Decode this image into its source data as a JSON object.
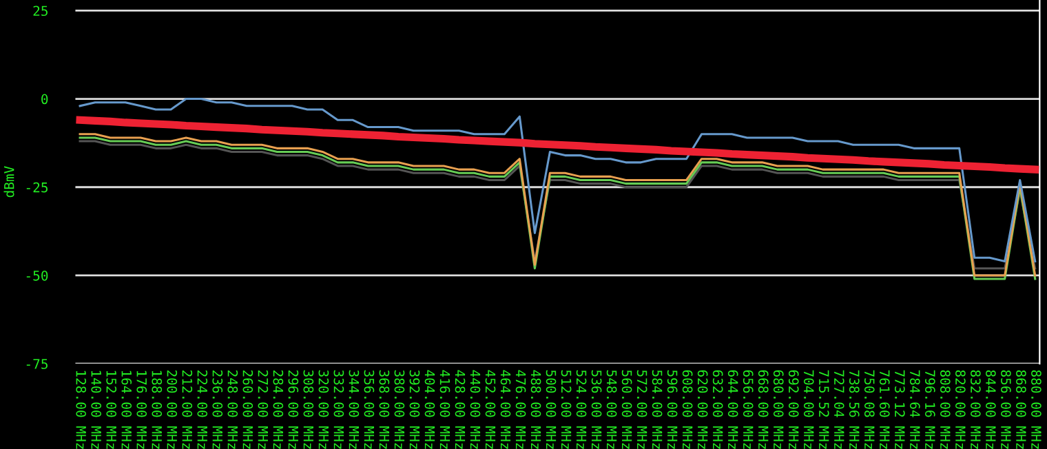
{
  "chart_data": {
    "type": "line",
    "ylabel": "dBmV",
    "categories": [
      "128.00 MHz",
      "140.00 MHz",
      "152.00 MHz",
      "164.00 MHz",
      "176.00 MHz",
      "188.00 MHz",
      "200.00 MHz",
      "212.00 MHz",
      "224.00 MHz",
      "236.00 MHz",
      "248.00 MHz",
      "260.00 MHz",
      "272.00 MHz",
      "284.00 MHz",
      "296.00 MHz",
      "308.00 MHz",
      "320.00 MHz",
      "332.00 MHz",
      "344.00 MHz",
      "356.00 MHz",
      "368.00 MHz",
      "380.00 MHz",
      "392.00 MHz",
      "404.00 MHz",
      "416.00 MHz",
      "428.00 MHz",
      "440.00 MHz",
      "452.00 MHz",
      "464.00 MHz",
      "476.00 MHz",
      "488.00 MHz",
      "500.00 MHz",
      "512.00 MHz",
      "524.00 MHz",
      "536.00 MHz",
      "548.00 MHz",
      "560.00 MHz",
      "572.00 MHz",
      "584.00 MHz",
      "596.00 MHz",
      "608.00 MHz",
      "620.00 MHz",
      "632.00 MHz",
      "644.00 MHz",
      "656.00 MHz",
      "668.00 MHz",
      "680.00 MHz",
      "692.00 MHz",
      "704.00 MHz",
      "715.52 MHz",
      "727.04 MHz",
      "738.56 MHz",
      "750.08 MHz",
      "761.60 MHz",
      "773.12 MHz",
      "784.64 MHz",
      "796.16 MHz",
      "808.00 MHz",
      "820.00 MHz",
      "832.00 MHz",
      "844.00 MHz",
      "856.00 MHz",
      "868.00 MHz",
      "880.00 MHz"
    ],
    "series": [
      {
        "color": "#555555",
        "values": [
          -12,
          -12,
          -13,
          -13,
          -13,
          -14,
          -14,
          -13,
          -14,
          -14,
          -15,
          -15,
          -15,
          -16,
          -16,
          -16,
          -17,
          -19,
          -19,
          -20,
          -20,
          -20,
          -21,
          -21,
          -21,
          -22,
          -22,
          -23,
          -23,
          -19,
          -46,
          -23,
          -23,
          -24,
          -24,
          -24,
          -25,
          -25,
          -25,
          -25,
          -25,
          -19,
          -19,
          -20,
          -20,
          -20,
          -21,
          -21,
          -21,
          -22,
          -22,
          -22,
          -22,
          -22,
          -23,
          -23,
          -23,
          -23,
          -23,
          -48,
          -48,
          -48,
          -26,
          -48
        ]
      },
      {
        "color": "#66cc55",
        "values": [
          -11,
          -11,
          -12,
          -12,
          -12,
          -13,
          -13,
          -12,
          -13,
          -13,
          -14,
          -14,
          -14,
          -15,
          -15,
          -15,
          -16,
          -18,
          -18,
          -19,
          -19,
          -19,
          -20,
          -20,
          -20,
          -21,
          -21,
          -22,
          -22,
          -18,
          -48,
          -22,
          -22,
          -23,
          -23,
          -23,
          -24,
          -24,
          -24,
          -24,
          -24,
          -18,
          -18,
          -19,
          -19,
          -19,
          -20,
          -20,
          -20,
          -21,
          -21,
          -21,
          -21,
          -21,
          -22,
          -22,
          -22,
          -22,
          -22,
          -51,
          -51,
          -51,
          -25,
          -51
        ]
      },
      {
        "color": "#e8a050",
        "values": [
          -10,
          -10,
          -11,
          -11,
          -11,
          -12,
          -12,
          -11,
          -12,
          -12,
          -13,
          -13,
          -13,
          -14,
          -14,
          -14,
          -15,
          -17,
          -17,
          -18,
          -18,
          -18,
          -19,
          -19,
          -19,
          -20,
          -20,
          -21,
          -21,
          -17,
          -47,
          -21,
          -21,
          -22,
          -22,
          -22,
          -23,
          -23,
          -23,
          -23,
          -23,
          -17,
          -17,
          -18,
          -18,
          -18,
          -19,
          -19,
          -19,
          -20,
          -20,
          -20,
          -20,
          -20,
          -21,
          -21,
          -21,
          -21,
          -21,
          -50,
          -50,
          -50,
          -24,
          -50
        ]
      },
      {
        "color": "#6699cc",
        "values": [
          -2,
          -1,
          -1,
          -1,
          -2,
          -3,
          -3,
          0,
          0,
          -1,
          -1,
          -2,
          -2,
          -2,
          -2,
          -3,
          -3,
          -6,
          -6,
          -8,
          -8,
          -8,
          -9,
          -9,
          -9,
          -9,
          -10,
          -10,
          -10,
          -5,
          -38,
          -15,
          -16,
          -16,
          -17,
          -17,
          -18,
          -18,
          -17,
          -17,
          -17,
          -10,
          -10,
          -10,
          -11,
          -11,
          -11,
          -11,
          -12,
          -12,
          -12,
          -13,
          -13,
          -13,
          -13,
          -14,
          -14,
          -14,
          -14,
          -45,
          -45,
          -46,
          -23,
          -46
        ]
      },
      {
        "color": "#ee2233",
        "values": [
          -6.0,
          -6.2,
          -6.4,
          -6.7,
          -6.9,
          -7.1,
          -7.3,
          -7.6,
          -7.8,
          -8.0,
          -8.2,
          -8.4,
          -8.7,
          -8.9,
          -9.1,
          -9.3,
          -9.6,
          -9.8,
          -10.0,
          -10.2,
          -10.4,
          -10.7,
          -10.9,
          -11.1,
          -11.3,
          -11.6,
          -11.8,
          -12.0,
          -12.2,
          -12.4,
          -12.7,
          -12.9,
          -13.1,
          -13.3,
          -13.6,
          -13.8,
          -14.0,
          -14.2,
          -14.4,
          -14.7,
          -14.9,
          -15.1,
          -15.3,
          -15.6,
          -15.8,
          -16.0,
          -16.2,
          -16.4,
          -16.7,
          -16.9,
          -17.1,
          -17.3,
          -17.6,
          -17.8,
          -18.0,
          -18.2,
          -18.4,
          -18.7,
          -18.9,
          -19.1,
          -19.3,
          -19.6,
          -19.8,
          -20.0
        ]
      }
    ],
    "ylim": [
      -75,
      28
    ],
    "yticks": [
      -75,
      -50,
      -25,
      0,
      25
    ],
    "grid": "y"
  }
}
